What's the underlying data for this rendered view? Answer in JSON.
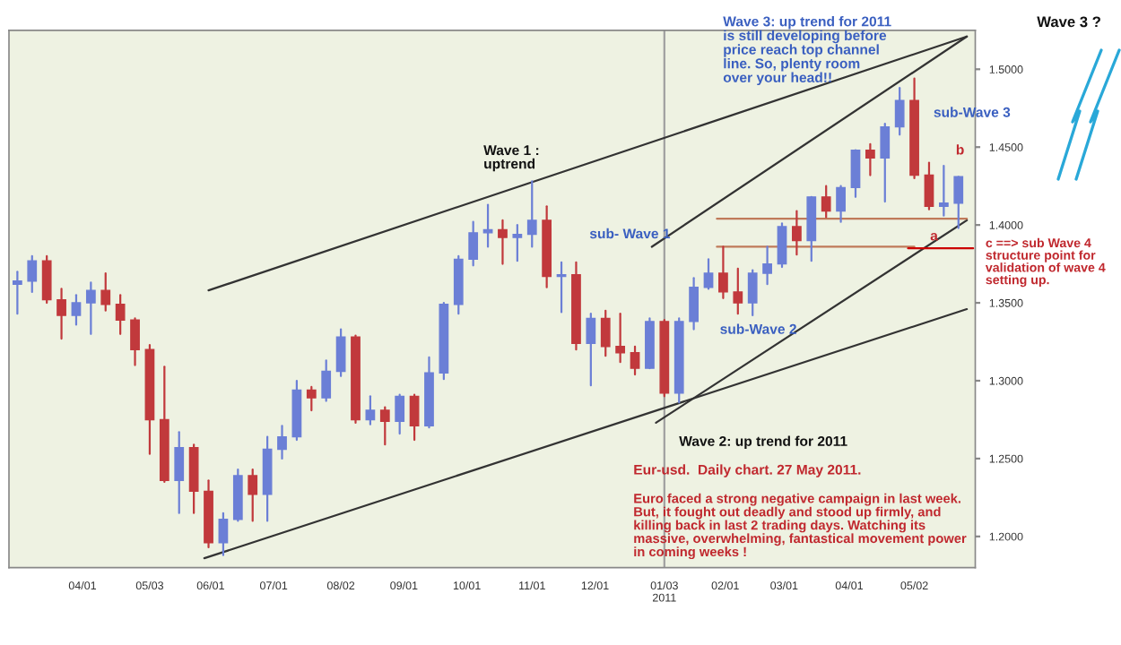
{
  "chart_data": {
    "type": "candlestick",
    "x": [
      "2010-03-01",
      "2010-03-08",
      "2010-03-15",
      "2010-03-22",
      "2010-03-29",
      "2010-04-05",
      "2010-04-12",
      "2010-04-19",
      "2010-04-26",
      "2010-05-03",
      "2010-05-10",
      "2010-05-17",
      "2010-05-24",
      "2010-05-31",
      "2010-06-07",
      "2010-06-14",
      "2010-06-21",
      "2010-06-28",
      "2010-07-05",
      "2010-07-12",
      "2010-07-19",
      "2010-07-26",
      "2010-08-02",
      "2010-08-09",
      "2010-08-16",
      "2010-08-23",
      "2010-08-30",
      "2010-09-06",
      "2010-09-13",
      "2010-09-20",
      "2010-09-27",
      "2010-10-04",
      "2010-10-11",
      "2010-10-18",
      "2010-10-25",
      "2010-11-01",
      "2010-11-08",
      "2010-11-15",
      "2010-11-22",
      "2010-11-29",
      "2010-12-06",
      "2010-12-13",
      "2010-12-20",
      "2010-12-27",
      "2011-01-03",
      "2011-01-10",
      "2011-01-17",
      "2011-01-24",
      "2011-01-31",
      "2011-02-07",
      "2011-02-14",
      "2011-02-21",
      "2011-02-28",
      "2011-03-07",
      "2011-03-14",
      "2011-03-21",
      "2011-03-28",
      "2011-04-04",
      "2011-04-11",
      "2011-04-18",
      "2011-04-25",
      "2011-05-02",
      "2011-05-09",
      "2011-05-16",
      "2011-05-23"
    ],
    "ohlc": [
      [
        1.362,
        1.37,
        1.343,
        1.364
      ],
      [
        1.364,
        1.38,
        1.357,
        1.377
      ],
      [
        1.377,
        1.38,
        1.35,
        1.352
      ],
      [
        1.352,
        1.359,
        1.327,
        1.342
      ],
      [
        1.342,
        1.355,
        1.336,
        1.35
      ],
      [
        1.35,
        1.363,
        1.33,
        1.358
      ],
      [
        1.358,
        1.369,
        1.345,
        1.349
      ],
      [
        1.349,
        1.355,
        1.33,
        1.339
      ],
      [
        1.339,
        1.34,
        1.31,
        1.32
      ],
      [
        1.32,
        1.323,
        1.253,
        1.275
      ],
      [
        1.275,
        1.309,
        1.235,
        1.236
      ],
      [
        1.236,
        1.267,
        1.215,
        1.257
      ],
      [
        1.257,
        1.259,
        1.215,
        1.229
      ],
      [
        1.229,
        1.236,
        1.193,
        1.196
      ],
      [
        1.196,
        1.215,
        1.188,
        1.211
      ],
      [
        1.211,
        1.243,
        1.21,
        1.239
      ],
      [
        1.239,
        1.243,
        1.21,
        1.227
      ],
      [
        1.227,
        1.264,
        1.21,
        1.256
      ],
      [
        1.256,
        1.271,
        1.25,
        1.264
      ],
      [
        1.264,
        1.3,
        1.262,
        1.294
      ],
      [
        1.294,
        1.296,
        1.281,
        1.289
      ],
      [
        1.289,
        1.313,
        1.287,
        1.306
      ],
      [
        1.306,
        1.333,
        1.303,
        1.328
      ],
      [
        1.328,
        1.329,
        1.273,
        1.275
      ],
      [
        1.275,
        1.29,
        1.272,
        1.281
      ],
      [
        1.281,
        1.283,
        1.259,
        1.274
      ],
      [
        1.274,
        1.291,
        1.266,
        1.29
      ],
      [
        1.29,
        1.291,
        1.262,
        1.271
      ],
      [
        1.271,
        1.315,
        1.27,
        1.305
      ],
      [
        1.305,
        1.35,
        1.301,
        1.349
      ],
      [
        1.349,
        1.38,
        1.343,
        1.378
      ],
      [
        1.378,
        1.402,
        1.374,
        1.395
      ],
      [
        1.395,
        1.413,
        1.386,
        1.397
      ],
      [
        1.397,
        1.403,
        1.375,
        1.392
      ],
      [
        1.392,
        1.4,
        1.377,
        1.394
      ],
      [
        1.394,
        1.428,
        1.386,
        1.403
      ],
      [
        1.403,
        1.412,
        1.36,
        1.367
      ],
      [
        1.367,
        1.376,
        1.344,
        1.368
      ],
      [
        1.368,
        1.376,
        1.32,
        1.324
      ],
      [
        1.324,
        1.343,
        1.297,
        1.34
      ],
      [
        1.34,
        1.345,
        1.316,
        1.322
      ],
      [
        1.322,
        1.343,
        1.312,
        1.318
      ],
      [
        1.318,
        1.322,
        1.304,
        1.308
      ],
      [
        1.308,
        1.34,
        1.308,
        1.338
      ],
      [
        1.338,
        1.339,
        1.29,
        1.292
      ],
      [
        1.292,
        1.34,
        1.286,
        1.338
      ],
      [
        1.338,
        1.366,
        1.333,
        1.36
      ],
      [
        1.36,
        1.378,
        1.359,
        1.369
      ],
      [
        1.369,
        1.386,
        1.353,
        1.357
      ],
      [
        1.357,
        1.372,
        1.343,
        1.35
      ],
      [
        1.35,
        1.371,
        1.342,
        1.369
      ],
      [
        1.369,
        1.386,
        1.362,
        1.375
      ],
      [
        1.375,
        1.401,
        1.373,
        1.399
      ],
      [
        1.399,
        1.409,
        1.381,
        1.39
      ],
      [
        1.39,
        1.418,
        1.377,
        1.418
      ],
      [
        1.418,
        1.425,
        1.405,
        1.409
      ],
      [
        1.409,
        1.425,
        1.402,
        1.424
      ],
      [
        1.424,
        1.448,
        1.418,
        1.448
      ],
      [
        1.448,
        1.452,
        1.432,
        1.443
      ],
      [
        1.443,
        1.465,
        1.415,
        1.463
      ],
      [
        1.463,
        1.488,
        1.458,
        1.48
      ],
      [
        1.48,
        1.494,
        1.43,
        1.432
      ],
      [
        1.432,
        1.44,
        1.41,
        1.412
      ],
      [
        1.412,
        1.438,
        1.406,
        1.414
      ],
      [
        1.414,
        1.431,
        1.398,
        1.431
      ]
    ],
    "colors": [
      "#6b7fd6",
      "#6b7fd6",
      "#c1393c",
      "#c1393c",
      "#6b7fd6",
      "#6b7fd6",
      "#c1393c",
      "#c1393c",
      "#c1393c",
      "#c1393c",
      "#c1393c",
      "#6b7fd6",
      "#c1393c",
      "#c1393c",
      "#6b7fd6",
      "#6b7fd6",
      "#c1393c",
      "#6b7fd6",
      "#6b7fd6",
      "#6b7fd6",
      "#c1393c",
      "#6b7fd6",
      "#6b7fd6",
      "#c1393c",
      "#6b7fd6",
      "#c1393c",
      "#6b7fd6",
      "#c1393c",
      "#6b7fd6",
      "#6b7fd6",
      "#6b7fd6",
      "#6b7fd6",
      "#6b7fd6",
      "#c1393c",
      "#6b7fd6",
      "#6b7fd6",
      "#c1393c",
      "#6b7fd6",
      "#c1393c",
      "#6b7fd6",
      "#c1393c",
      "#c1393c",
      "#c1393c",
      "#6b7fd6",
      "#c1393c",
      "#6b7fd6",
      "#6b7fd6",
      "#6b7fd6",
      "#c1393c",
      "#c1393c",
      "#6b7fd6",
      "#6b7fd6",
      "#6b7fd6",
      "#c1393c",
      "#6b7fd6",
      "#c1393c",
      "#6b7fd6",
      "#6b7fd6",
      "#c1393c",
      "#6b7fd6",
      "#6b7fd6",
      "#c1393c",
      "#c1393c",
      "#6b7fd6",
      "#6b7fd6"
    ],
    "series": [
      {
        "type": "line",
        "color": "#333333",
        "x": [
          "2010-05-31",
          "2011-05-27"
        ],
        "values": [
          1.358,
          1.521
        ]
      },
      {
        "type": "line",
        "color": "#333333",
        "x": [
          "2010-05-29",
          "2011-05-27"
        ],
        "values": [
          1.186,
          1.346
        ]
      },
      {
        "type": "line",
        "color": "#333333",
        "x": [
          "2010-12-28",
          "2011-05-27"
        ],
        "values": [
          1.386,
          1.521
        ]
      },
      {
        "type": "line",
        "color": "#333333",
        "x": [
          "2010-12-30",
          "2011-05-27"
        ],
        "values": [
          1.273,
          1.403
        ]
      },
      {
        "type": "line",
        "color": "#c07a5a",
        "x": [
          "2011-01-28",
          "2011-05-27"
        ],
        "values": [
          1.404,
          1.404
        ]
      },
      {
        "type": "line",
        "color": "#c07a5a",
        "x": [
          "2011-01-28",
          "2011-05-02"
        ],
        "values": [
          1.386,
          1.386
        ]
      },
      {
        "type": "line",
        "color": "#cc0000",
        "x": [
          "2011-04-29",
          "2011-05-30"
        ],
        "values": [
          1.385,
          1.385
        ]
      }
    ],
    "ref_lines": [
      {
        "axis": "x",
        "value": "2011-01-03",
        "color": "#a0a0a0"
      }
    ],
    "xlim": [
      "2010-02-25",
      "2011-05-31"
    ],
    "xticks": [
      {
        "value": "2010-04-01",
        "label": "04/01"
      },
      {
        "value": "2010-05-03",
        "label": "05/03"
      },
      {
        "value": "2010-06-01",
        "label": "06/01"
      },
      {
        "value": "2010-07-01",
        "label": "07/01"
      },
      {
        "value": "2010-08-02",
        "label": "08/02"
      },
      {
        "value": "2010-09-01",
        "label": "09/01"
      },
      {
        "value": "2010-10-01",
        "label": "10/01"
      },
      {
        "value": "2010-11-01",
        "label": "11/01"
      },
      {
        "value": "2010-12-01",
        "label": "12/01"
      },
      {
        "value": "2011-01-03",
        "label": "01/03\n2011"
      },
      {
        "value": "2011-02-01",
        "label": "02/01"
      },
      {
        "value": "2011-03-01",
        "label": "03/01"
      },
      {
        "value": "2011-04-01",
        "label": "04/01"
      },
      {
        "value": "2011-05-02",
        "label": "05/02"
      }
    ],
    "ylim": [
      1.18,
      1.525
    ],
    "yticks": [
      {
        "value": 1.2,
        "label": "1.2000"
      },
      {
        "value": 1.25,
        "label": "1.2500"
      },
      {
        "value": 1.3,
        "label": "1.3000"
      },
      {
        "value": 1.35,
        "label": "1.3500"
      },
      {
        "value": 1.4,
        "label": "1.4000"
      },
      {
        "value": 1.45,
        "label": "1.4500"
      },
      {
        "value": 1.5,
        "label": "1.5000"
      }
    ],
    "annotations": [
      {
        "text": "Wave 1 :\nuptrend",
        "x": "2010-11-04",
        "y": 1.428
      },
      "Wave 3: up trend for 2011\nis still developing before\nprice reach top channel\nline. So, plenty room\nover your head!!",
      {
        "text": "sub-Wave 3",
        "x": "2011-05-04",
        "y": 1.494
      },
      {
        "text": "b",
        "x": "2011-05-17",
        "y": 1.438
      },
      {
        "text": "a",
        "x": "2011-05-09",
        "y": 1.41
      },
      {
        "text": "c ==> sub Wave 4\nstructure point for\nvalidation of wave 4\nsetting up.",
        "x": "2011-05-24",
        "y": 1.398
      },
      "sub- Wave 1",
      {
        "text": "sub-Wave 2",
        "x": "2011-02-15",
        "y": 1.342
      },
      {
        "text": "Wave 2: up trend for 2011",
        "x": "2011-01-10",
        "y": 1.286
      },
      "Eur-usd.  Daily chart. 27 May 2011.",
      "Euro faced a strong negative campaign in last week.\nBut, it fought out deadly and stood up firmly, and\nkilling back in last 2 trading days. Watching its\nmassive, overwhelming, fantastical movement power\nin coming weeks !",
      "Wave 3 ?"
    ]
  }
}
